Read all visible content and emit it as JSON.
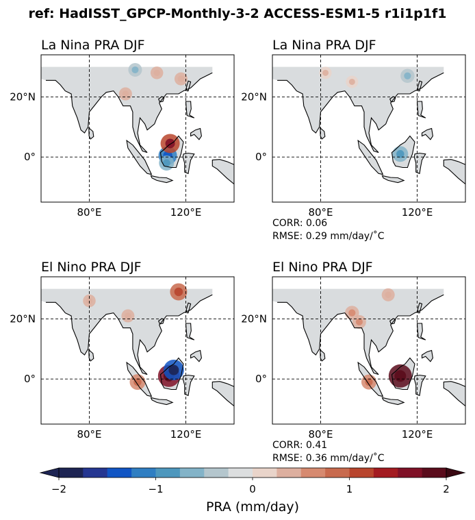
{
  "figure_title": "ref: HadISST_GPCP-Monthly-3-2 ACCESS-ESM1-5 r1i1p1f1",
  "colors": {
    "neutral_land": "#d9dcde",
    "map_bg": "#ffffff",
    "coast": "#000000",
    "grid": "#000000"
  },
  "colorbar": {
    "label": "PRA (mm/day)",
    "ticks": [
      "−2",
      "−1",
      "0",
      "1",
      "2"
    ],
    "tick_values": [
      -2,
      -1,
      0,
      1,
      2
    ],
    "range": [
      -2,
      2
    ],
    "extend": "both",
    "colors": [
      "#1d2453",
      "#253691",
      "#1155c4",
      "#2f7ec2",
      "#4d97bd",
      "#83b3c8",
      "#b4c6cd",
      "#dcdedf",
      "#e9d4ca",
      "#ddaf9f",
      "#d68a70",
      "#c86a4e",
      "#b8452d",
      "#a31b21",
      "#7f1127",
      "#5a0c1c"
    ]
  },
  "chart_data": [
    {
      "type": "heatmap",
      "title": "La Nina PRA DJF",
      "projection": "PlateCarree",
      "lon_range": [
        60,
        140
      ],
      "lat_range": [
        -15,
        34
      ],
      "xticks": [
        "80°E",
        "120°E"
      ],
      "yticks": [
        "20°N",
        "0°"
      ],
      "gridlines": true,
      "stats": null,
      "anomalies": [
        {
          "lon": 112.5,
          "lat": 0.5,
          "value": -1.1
        },
        {
          "lon": 113.5,
          "lat": 4.5,
          "value": 1.2
        },
        {
          "lon": 112,
          "lat": -2,
          "value": -0.6
        },
        {
          "lon": 99,
          "lat": 29,
          "value": -0.4
        },
        {
          "lon": 108,
          "lat": 28,
          "value": 0.25
        },
        {
          "lon": 118,
          "lat": 26,
          "value": 0.3
        },
        {
          "lon": 95,
          "lat": 21,
          "value": 0.3
        }
      ]
    },
    {
      "type": "heatmap",
      "title": "La Nina PRA DJF",
      "projection": "PlateCarree",
      "lon_range": [
        60,
        140
      ],
      "lat_range": [
        -15,
        34
      ],
      "xticks": [
        "80°E",
        "120°E"
      ],
      "yticks": [
        "20°N",
        "0°"
      ],
      "gridlines": true,
      "stats": {
        "corr": "CORR: 0.06",
        "rmse": "RMSE: 0.29 mm/day/$^\\circ$C"
      },
      "anomalies": [
        {
          "lon": 113,
          "lat": 1,
          "value": -0.7
        },
        {
          "lon": 116,
          "lat": 27,
          "value": -0.45
        },
        {
          "lon": 82,
          "lat": 28,
          "value": 0.2
        },
        {
          "lon": 93,
          "lat": 25,
          "value": 0.2
        }
      ]
    },
    {
      "type": "heatmap",
      "title": "El Nino PRA DJF",
      "projection": "PlateCarree",
      "lon_range": [
        60,
        140
      ],
      "lat_range": [
        -15,
        34
      ],
      "xticks": [
        "80°E",
        "120°E"
      ],
      "yticks": [
        "20°N",
        "0°"
      ],
      "gridlines": true,
      "stats": null,
      "anomalies": [
        {
          "lon": 113,
          "lat": 1,
          "value": 1.6
        },
        {
          "lon": 115,
          "lat": 3,
          "value": -1.4
        },
        {
          "lon": 117,
          "lat": 29,
          "value": 0.9
        },
        {
          "lon": 100,
          "lat": -1,
          "value": 0.7
        },
        {
          "lon": 80,
          "lat": 26,
          "value": 0.25
        },
        {
          "lon": 96,
          "lat": 21,
          "value": 0.3
        }
      ]
    },
    {
      "type": "heatmap",
      "title": "El Nino PRA DJF",
      "projection": "PlateCarree",
      "lon_range": [
        60,
        140
      ],
      "lat_range": [
        -15,
        34
      ],
      "xticks": [
        "80°E",
        "120°E"
      ],
      "yticks": [
        "20°N",
        "0°"
      ],
      "gridlines": true,
      "stats": {
        "corr": "CORR: 0.41",
        "rmse": "RMSE: 0.36 mm/day/$^\\circ$C"
      },
      "anomalies": [
        {
          "lon": 113,
          "lat": 1,
          "value": 1.8
        },
        {
          "lon": 100,
          "lat": -1,
          "value": 0.6
        },
        {
          "lon": 93,
          "lat": 22,
          "value": 0.45
        },
        {
          "lon": 96,
          "lat": 19,
          "value": 0.4
        },
        {
          "lon": 108,
          "lat": 28,
          "value": 0.3
        }
      ]
    }
  ]
}
